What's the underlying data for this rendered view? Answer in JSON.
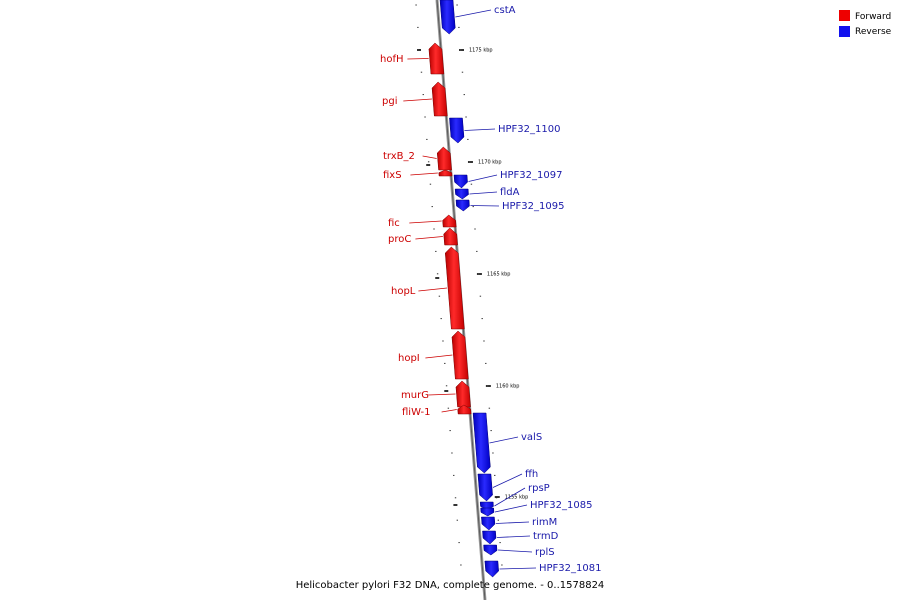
{
  "caption": "Helicobacter pylori F32 DNA, complete genome. - 0..1578824",
  "legend": [
    {
      "label": "Forward",
      "color": "#ee0000"
    },
    {
      "label": "Reverse",
      "color": "#1111ee"
    }
  ],
  "ticks": [
    "1175 kbp",
    "1170 kbp",
    "1165 kbp",
    "1160 kbp",
    "1155 kbp"
  ],
  "genes": [
    {
      "name": "cstA",
      "strand": "reverse"
    },
    {
      "name": "hofH",
      "strand": "forward"
    },
    {
      "name": "pgi",
      "strand": "forward"
    },
    {
      "name": "HPF32_1100",
      "strand": "reverse"
    },
    {
      "name": "trxB_2",
      "strand": "forward"
    },
    {
      "name": "fixS",
      "strand": "forward"
    },
    {
      "name": "HPF32_1097",
      "strand": "reverse"
    },
    {
      "name": "fldA",
      "strand": "reverse"
    },
    {
      "name": "HPF32_1095",
      "strand": "reverse"
    },
    {
      "name": "fic",
      "strand": "forward"
    },
    {
      "name": "proC",
      "strand": "forward"
    },
    {
      "name": "hopL",
      "strand": "forward"
    },
    {
      "name": "hopI",
      "strand": "forward"
    },
    {
      "name": "murG",
      "strand": "forward"
    },
    {
      "name": "fliW-1",
      "strand": "forward"
    },
    {
      "name": "valS",
      "strand": "reverse"
    },
    {
      "name": "ffh",
      "strand": "reverse"
    },
    {
      "name": "rpsP",
      "strand": "reverse"
    },
    {
      "name": "HPF32_1085",
      "strand": "reverse"
    },
    {
      "name": "rimM",
      "strand": "reverse"
    },
    {
      "name": "trmD",
      "strand": "reverse"
    },
    {
      "name": "rplS",
      "strand": "reverse"
    },
    {
      "name": "HPF32_1081",
      "strand": "reverse"
    }
  ]
}
